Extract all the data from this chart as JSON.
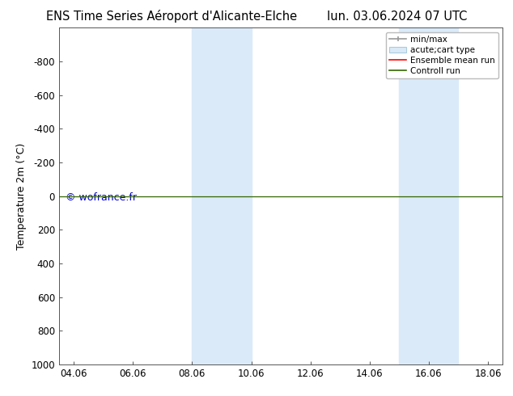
{
  "title_left": "ENS Time Series Aéroport d'Alicante-Elche",
  "title_right": "lun. 03.06.2024 07 UTC",
  "ylabel": "Temperature 2m (°C)",
  "watermark": "© wofrance.fr",
  "xlim": [
    3.5,
    18.5
  ],
  "ylim": [
    1000,
    -1000
  ],
  "xticks": [
    4,
    6,
    8,
    10,
    12,
    14,
    16,
    18
  ],
  "xticklabels": [
    "04.06",
    "06.06",
    "08.06",
    "10.06",
    "12.06",
    "14.06",
    "16.06",
    "18.06"
  ],
  "yticks": [
    -800,
    -600,
    -400,
    -200,
    0,
    200,
    400,
    600,
    800,
    1000
  ],
  "yticklabels": [
    "-800",
    "-600",
    "-400",
    "-200",
    "0",
    "200",
    "400",
    "600",
    "800",
    "1000"
  ],
  "shaded_bands": [
    {
      "xmin": 8.0,
      "xmax": 10.0
    },
    {
      "xmin": 15.0,
      "xmax": 17.0
    }
  ],
  "shaded_color": "#daeaf8",
  "horizontal_line_y": 0,
  "horizontal_line_color": "#336600",
  "ensemble_mean_color": "#ff0000",
  "minmax_color": "#999999",
  "control_color": "#336600",
  "background_color": "#ffffff",
  "legend_labels": [
    "min/max",
    "acute;cart type",
    "Ensemble mean run",
    "Controll run"
  ],
  "title_fontsize": 10.5,
  "tick_fontsize": 8.5,
  "ylabel_fontsize": 9,
  "watermark_fontsize": 9
}
